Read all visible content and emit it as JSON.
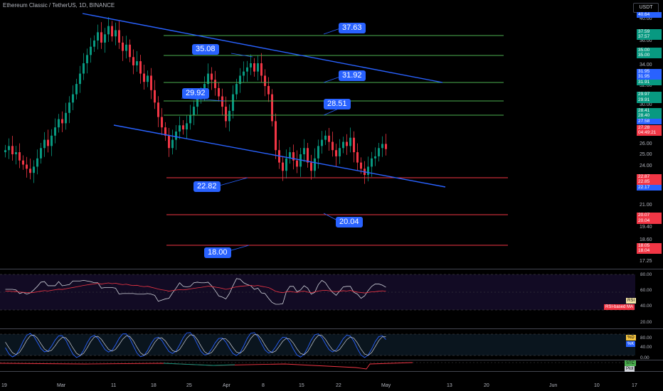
{
  "header": {
    "title": "Ethereum Classic / TetherUS, 1D, BINANCE"
  },
  "currency": "USDT",
  "price_axis": {
    "ticks": [
      "40.00",
      "36.00",
      "34.00",
      "32.00",
      "30.00",
      "28.00",
      "26.00",
      "25.00",
      "24.00",
      "21.00",
      "19.40",
      "18.60",
      "17.25"
    ],
    "tags": [
      {
        "text": "40.64",
        "color": "#2962ff"
      },
      {
        "text": "37.59",
        "color": "#089981"
      },
      {
        "text": "37.57",
        "color": "#089981"
      },
      {
        "text": "35.00",
        "color": "#089981"
      },
      {
        "text": "35.00",
        "color": "#089981"
      },
      {
        "text": "31.95",
        "color": "#2962ff"
      },
      {
        "text": "31.95",
        "color": "#2962ff"
      },
      {
        "text": "31.91",
        "color": "#089981"
      },
      {
        "text": "29.97",
        "color": "#089981"
      },
      {
        "text": "29.91",
        "color": "#089981"
      },
      {
        "text": "28.41",
        "color": "#089981"
      },
      {
        "text": "28.40",
        "color": "#089981"
      },
      {
        "text": "27.58",
        "color": "#2962ff"
      },
      {
        "text": "27.28",
        "color": "#f23645"
      },
      {
        "text": "04:49:21",
        "color": "#f23645"
      },
      {
        "text": "22.87",
        "color": "#f23645"
      },
      {
        "text": "22.85",
        "color": "#f23645"
      },
      {
        "text": "22.17",
        "color": "#2962ff"
      },
      {
        "text": "20.07",
        "color": "#f23645"
      },
      {
        "text": "20.04",
        "color": "#f23645"
      },
      {
        "text": "18.05",
        "color": "#f23645"
      },
      {
        "text": "18.04",
        "color": "#f23645"
      }
    ]
  },
  "levels": {
    "green": [
      "37.63",
      "35.08",
      "31.92",
      "29.92",
      "28.51"
    ],
    "red": [
      "22.82",
      "20.04",
      "18.00"
    ]
  },
  "rsi": {
    "ticks": [
      "80.00",
      "60.00",
      "40.00",
      "20.00"
    ],
    "legend": [
      "RSI",
      "RSI-based MA"
    ]
  },
  "stoch": {
    "ticks": [
      "80.00",
      "40.00"
    ],
    "legend": [
      "%D",
      "%K"
    ]
  },
  "stc": {
    "ticks": [
      "0.00"
    ],
    "legend": [
      "STC",
      "Plot"
    ]
  },
  "time_axis": [
    "19",
    "Mar",
    "11",
    "18",
    "25",
    "Apr",
    "8",
    "15",
    "22",
    "May",
    "13",
    "20",
    "Jun",
    "10",
    "17"
  ],
  "colors": {
    "up": "#089981",
    "down": "#f23645",
    "trend": "#2962ff",
    "level_green": "#4caf50",
    "level_red": "#f23645",
    "rsi": "#d1d4dc",
    "rsi_ma": "#f23645",
    "d_line": "#d1d4dc",
    "k_line": "#2962ff"
  }
}
